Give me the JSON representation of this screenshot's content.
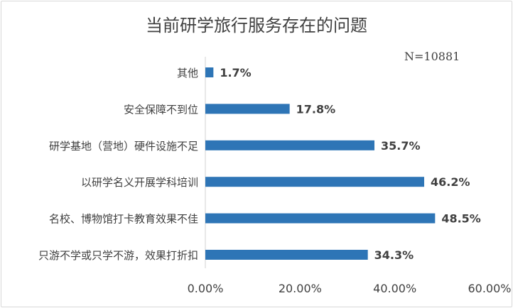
{
  "chart_data": {
    "type": "bar",
    "orientation": "horizontal",
    "title": "当前研学旅行服务存在的问题",
    "annotation": "N=10881",
    "categories": [
      "其他",
      "安全保障不到位",
      "研学基地（营地）硬件设施不足",
      "以研学名义开展学科培训",
      "名校、博物馆打卡教育效果不佳",
      "只游不学或只学不游，效果打折扣"
    ],
    "values": [
      1.7,
      17.8,
      35.7,
      46.2,
      48.5,
      34.3
    ],
    "value_labels": [
      "1.7%",
      "17.8%",
      "35.7%",
      "46.2%",
      "48.5%",
      "34.3%"
    ],
    "x_ticks": [
      "0.00%",
      "20.00%",
      "40.00%",
      "60.00%"
    ],
    "xlim": [
      0,
      60
    ],
    "color": "#2e75b6",
    "grid": false,
    "legend": "none"
  }
}
